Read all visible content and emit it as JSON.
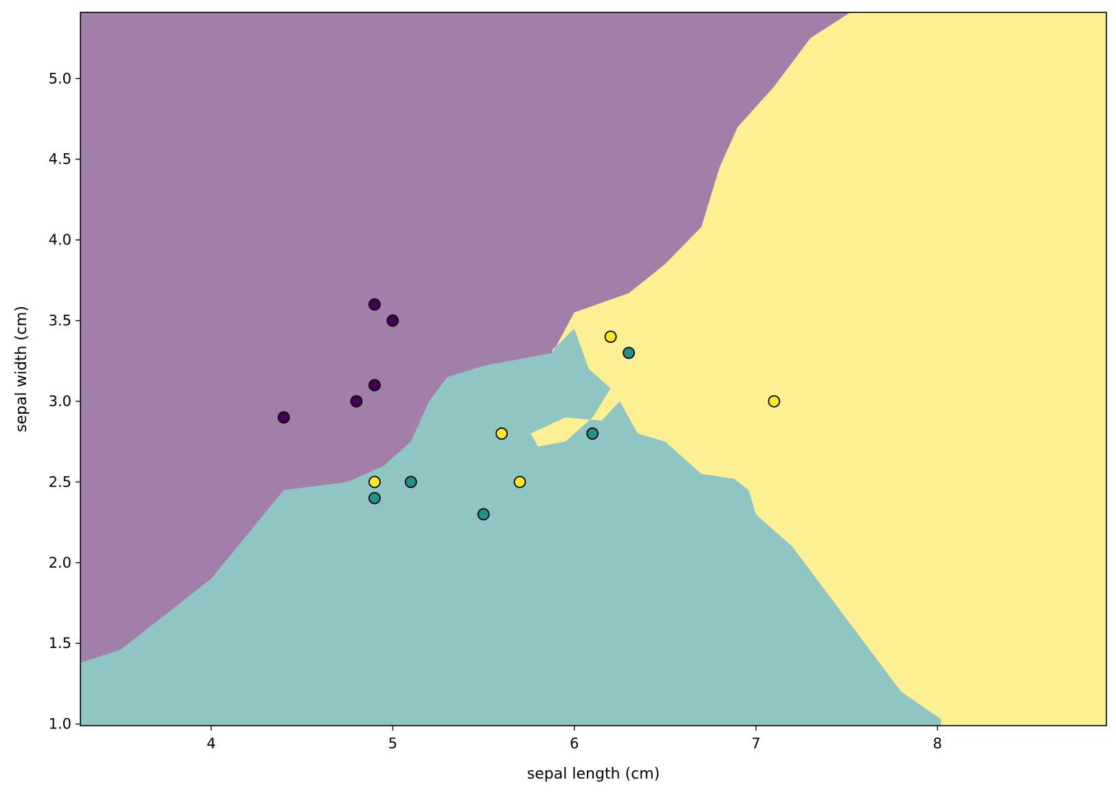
{
  "chart_data": {
    "type": "scatter",
    "title": "",
    "xlabel": "sepal length (cm)",
    "ylabel": "sepal width (cm)",
    "xlim": [
      3.28,
      8.93
    ],
    "ylim": [
      0.99,
      5.41
    ],
    "xticks": [
      4,
      5,
      6,
      7,
      8
    ],
    "yticks": [
      1.0,
      1.5,
      2.0,
      2.5,
      3.0,
      3.5,
      4.0,
      4.5,
      5.0
    ],
    "grid": false,
    "legend": "none",
    "region_colors": {
      "class_0": "#a27fa8",
      "class_1": "#8fc6c3",
      "class_2": "#fdf092"
    },
    "point_colors": {
      "class_0": "#440154",
      "class_1": "#21918c",
      "class_2": "#fde725"
    },
    "boundaries": {
      "purple_upper": [
        [
          3.28,
          1.38
        ],
        [
          3.5,
          1.46
        ],
        [
          4.0,
          1.9
        ],
        [
          4.4,
          2.45
        ],
        [
          4.75,
          2.5
        ],
        [
          4.95,
          2.6
        ],
        [
          5.1,
          2.75
        ],
        [
          5.2,
          3.0
        ],
        [
          5.3,
          3.15
        ],
        [
          5.5,
          3.22
        ],
        [
          5.88,
          3.3
        ],
        [
          6.0,
          3.55
        ],
        [
          6.3,
          3.67
        ],
        [
          6.5,
          3.85
        ],
        [
          6.7,
          4.08
        ],
        [
          6.8,
          4.45
        ],
        [
          6.9,
          4.7
        ],
        [
          7.1,
          4.95
        ],
        [
          7.3,
          5.25
        ],
        [
          7.52,
          5.41
        ]
      ],
      "yellow_left": [
        [
          5.88,
          3.32
        ],
        [
          6.0,
          3.45
        ],
        [
          6.08,
          3.2
        ],
        [
          6.2,
          3.08
        ],
        [
          6.1,
          2.9
        ],
        [
          5.95,
          2.75
        ],
        [
          5.8,
          2.72
        ],
        [
          5.76,
          2.8
        ],
        [
          5.95,
          2.9
        ],
        [
          6.15,
          2.88
        ],
        [
          6.25,
          3.0
        ],
        [
          6.35,
          2.8
        ],
        [
          6.5,
          2.75
        ],
        [
          6.6,
          2.65
        ],
        [
          6.7,
          2.55
        ],
        [
          6.88,
          2.52
        ],
        [
          6.96,
          2.45
        ],
        [
          7.0,
          2.3
        ],
        [
          7.2,
          2.1
        ],
        [
          7.4,
          1.8
        ],
        [
          7.6,
          1.5
        ],
        [
          7.8,
          1.2
        ],
        [
          8.02,
          1.03
        ],
        [
          8.02,
          0.99
        ]
      ]
    },
    "series": [
      {
        "class": "class_0",
        "points": [
          [
            4.9,
            3.6
          ],
          [
            5.0,
            3.5
          ],
          [
            4.9,
            3.1
          ],
          [
            4.8,
            3.0
          ],
          [
            4.4,
            2.9
          ]
        ]
      },
      {
        "class": "class_1",
        "points": [
          [
            6.3,
            3.3
          ],
          [
            6.1,
            2.8
          ],
          [
            5.1,
            2.5
          ],
          [
            4.9,
            2.4
          ],
          [
            5.5,
            2.3
          ]
        ]
      },
      {
        "class": "class_2",
        "points": [
          [
            6.2,
            3.4
          ],
          [
            7.1,
            3.0
          ],
          [
            5.6,
            2.8
          ],
          [
            4.9,
            2.5
          ],
          [
            5.7,
            2.5
          ]
        ]
      }
    ]
  }
}
